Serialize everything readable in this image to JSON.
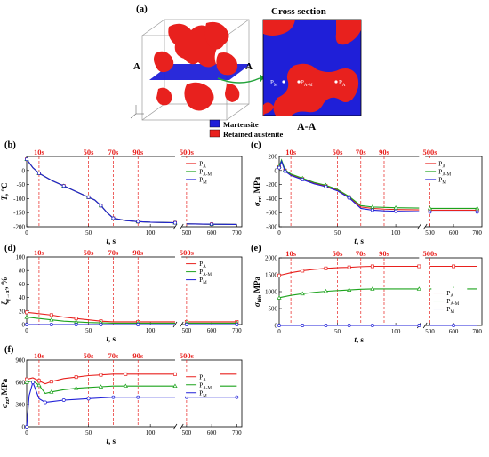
{
  "panel_a": {
    "label": "(a)",
    "cross_section_title": "Cross section",
    "section_marker": "A",
    "section_caption": "A-A",
    "points": [
      "P",
      "P",
      "P"
    ],
    "point_subs": [
      "M",
      "A-M",
      "A"
    ],
    "legend": [
      "Martensite",
      "Retained austenite"
    ],
    "colors": {
      "martensite": "#1f1fd8",
      "austenite": "#e8211e",
      "arrow": "#22a33a"
    }
  },
  "series_legend": {
    "base": "P",
    "subs": [
      "A",
      "A-M",
      "M"
    ],
    "colors": [
      "#e8211e",
      "#1ca31c",
      "#1f1fd8"
    ]
  },
  "time_marks": {
    "labels": [
      "10s",
      "50s",
      "70s",
      "90s",
      "500s"
    ],
    "values": [
      10,
      50,
      70,
      90,
      500
    ],
    "color": "#e8211e"
  },
  "chart_data": [
    {
      "panel": "(b)",
      "type": "line",
      "ylabel_main": "T",
      "ylabel_unit": ", °C",
      "xlabel_main": "t",
      "xlabel_unit": ", s",
      "ylim": [
        -200,
        50
      ],
      "yticks": [
        "0",
        "-50",
        "-100",
        "-150",
        "-200"
      ],
      "xticks": [
        "0",
        "50",
        "100",
        "500",
        "600",
        "700"
      ],
      "series": [
        {
          "name": "A",
          "x": [
            0,
            5,
            10,
            20,
            30,
            40,
            50,
            55,
            60,
            65,
            70,
            80,
            90,
            100,
            120,
            500,
            600,
            700
          ],
          "y": [
            40,
            10,
            -10,
            -35,
            -55,
            -75,
            -95,
            -105,
            -125,
            -150,
            -170,
            -178,
            -182,
            -184,
            -186,
            -190,
            -191,
            -192
          ]
        },
        {
          "name": "A-M",
          "x": [
            0,
            5,
            10,
            20,
            30,
            40,
            50,
            55,
            60,
            65,
            70,
            80,
            90,
            100,
            120,
            500,
            600,
            700
          ],
          "y": [
            40,
            10,
            -10,
            -35,
            -55,
            -75,
            -95,
            -105,
            -125,
            -150,
            -170,
            -178,
            -182,
            -184,
            -186,
            -190,
            -191,
            -192
          ]
        },
        {
          "name": "M",
          "x": [
            0,
            5,
            10,
            20,
            30,
            40,
            50,
            55,
            60,
            65,
            70,
            80,
            90,
            100,
            120,
            500,
            600,
            700
          ],
          "y": [
            40,
            10,
            -10,
            -35,
            -55,
            -75,
            -95,
            -105,
            -125,
            -150,
            -170,
            -178,
            -182,
            -184,
            -186,
            -190,
            -191,
            -192
          ]
        }
      ]
    },
    {
      "panel": "(c)",
      "type": "line",
      "ylabel_main": "σ",
      "ylabel_sub": "rr",
      "ylabel_unit": ", MPa",
      "xlabel_main": "t",
      "xlabel_unit": ", s",
      "ylim": [
        -800,
        200
      ],
      "yticks": [
        "200",
        "0",
        "-200",
        "-400",
        "-600",
        "-800"
      ],
      "xticks": [
        "0",
        "50",
        "100",
        "500",
        "600",
        "700"
      ],
      "series": [
        {
          "name": "A",
          "x": [
            0,
            2,
            5,
            10,
            20,
            30,
            40,
            50,
            60,
            70,
            80,
            90,
            100,
            120,
            500,
            600,
            700
          ],
          "y": [
            50,
            140,
            0,
            -60,
            -120,
            -180,
            -220,
            -280,
            -380,
            -520,
            -540,
            -550,
            -555,
            -560,
            -565,
            -565,
            -565
          ]
        },
        {
          "name": "A-M",
          "x": [
            0,
            2,
            5,
            10,
            20,
            30,
            40,
            50,
            60,
            70,
            80,
            90,
            100,
            120,
            500,
            600,
            700
          ],
          "y": [
            60,
            150,
            10,
            -50,
            -110,
            -170,
            -210,
            -270,
            -370,
            -500,
            -520,
            -525,
            -530,
            -535,
            -540,
            -540,
            -540
          ]
        },
        {
          "name": "M",
          "x": [
            0,
            2,
            5,
            10,
            20,
            30,
            40,
            50,
            60,
            70,
            80,
            90,
            100,
            120,
            500,
            600,
            700
          ],
          "y": [
            40,
            130,
            -10,
            -70,
            -130,
            -190,
            -230,
            -290,
            -390,
            -540,
            -565,
            -575,
            -580,
            -585,
            -590,
            -590,
            -590
          ]
        }
      ]
    },
    {
      "panel": "(d)",
      "type": "line",
      "ylabel_main": "ξ",
      "ylabel_sub": "γ→α'",
      "ylabel_unit": ", %",
      "xlabel_main": "t",
      "xlabel_unit": ", s",
      "ylim": [
        0,
        100
      ],
      "yticks": [
        "100",
        "80",
        "60",
        "40",
        "20",
        "0"
      ],
      "xticks": [
        "0",
        "50",
        "100",
        "500",
        "600",
        "700"
      ],
      "series": [
        {
          "name": "A",
          "x": [
            0,
            10,
            20,
            30,
            40,
            50,
            60,
            70,
            90,
            120,
            500,
            600,
            700
          ],
          "y": [
            18,
            16,
            14,
            11,
            9,
            7,
            5,
            4,
            4,
            4,
            4,
            4,
            4
          ]
        },
        {
          "name": "A-M",
          "x": [
            0,
            10,
            20,
            30,
            40,
            50,
            60,
            70,
            90,
            120,
            500,
            600,
            700
          ],
          "y": [
            11,
            9,
            7,
            5,
            4,
            3,
            2.5,
            2,
            2,
            2,
            2,
            2,
            2
          ]
        },
        {
          "name": "M",
          "x": [
            0,
            10,
            20,
            30,
            40,
            50,
            60,
            70,
            90,
            120,
            500,
            600,
            700
          ],
          "y": [
            0,
            0,
            0,
            0,
            0,
            0,
            0,
            0,
            0,
            0,
            0,
            0,
            0
          ]
        }
      ]
    },
    {
      "panel": "(e)",
      "type": "line",
      "ylabel_main": "σ",
      "ylabel_sub": "θθ",
      "ylabel_unit": ", MPa",
      "xlabel_main": "t",
      "xlabel_unit": ", s",
      "ylim": [
        0,
        2000
      ],
      "yticks": [
        "2000",
        "1500",
        "1000",
        "500",
        "0"
      ],
      "xticks": [
        "0",
        "50",
        "100",
        "500",
        "600",
        "700"
      ],
      "series": [
        {
          "name": "A",
          "x": [
            0,
            10,
            20,
            30,
            40,
            50,
            60,
            70,
            80,
            90,
            120,
            500,
            600,
            700
          ],
          "y": [
            1480,
            1560,
            1620,
            1660,
            1690,
            1710,
            1720,
            1740,
            1750,
            1750,
            1750,
            1750,
            1750,
            1750
          ]
        },
        {
          "name": "A-M",
          "x": [
            0,
            10,
            20,
            30,
            40,
            50,
            60,
            70,
            80,
            90,
            120,
            500,
            600,
            700
          ],
          "y": [
            820,
            890,
            940,
            980,
            1010,
            1030,
            1050,
            1070,
            1080,
            1080,
            1080,
            1080,
            1080,
            1080
          ]
        },
        {
          "name": "M",
          "x": [
            0,
            10,
            20,
            30,
            40,
            50,
            60,
            70,
            80,
            90,
            120,
            500,
            600,
            700
          ],
          "y": [
            0,
            0,
            0,
            0,
            0,
            0,
            0,
            0,
            0,
            0,
            0,
            0,
            0,
            0
          ]
        }
      ]
    },
    {
      "panel": "(f)",
      "type": "line",
      "ylabel_main": "σ",
      "ylabel_sub": "zz",
      "ylabel_unit": ", MPa",
      "xlabel_main": "t",
      "xlabel_unit": ", s",
      "ylim": [
        0,
        900
      ],
      "yticks": [
        "900",
        "600",
        "300",
        "0"
      ],
      "xticks": [
        "0",
        "50",
        "100",
        "500",
        "600",
        "700"
      ],
      "series": [
        {
          "name": "A",
          "x": [
            0,
            5,
            10,
            15,
            20,
            30,
            40,
            50,
            60,
            70,
            80,
            90,
            120,
            500,
            600,
            700
          ],
          "y": [
            640,
            660,
            620,
            580,
            610,
            650,
            670,
            690,
            700,
            710,
            710,
            710,
            710,
            710,
            710,
            710
          ]
        },
        {
          "name": "A-M",
          "x": [
            0,
            5,
            10,
            15,
            20,
            30,
            40,
            50,
            60,
            70,
            80,
            90,
            120,
            500,
            600,
            700
          ],
          "y": [
            600,
            620,
            560,
            450,
            470,
            500,
            520,
            530,
            540,
            550,
            550,
            550,
            550,
            550,
            550,
            550
          ]
        },
        {
          "name": "M",
          "x": [
            0,
            2,
            5,
            10,
            15,
            20,
            30,
            40,
            50,
            60,
            70,
            80,
            90,
            120,
            500,
            600,
            700
          ],
          "y": [
            0,
            420,
            600,
            380,
            330,
            340,
            360,
            370,
            380,
            390,
            400,
            400,
            400,
            400,
            400,
            400,
            400
          ]
        }
      ]
    }
  ]
}
